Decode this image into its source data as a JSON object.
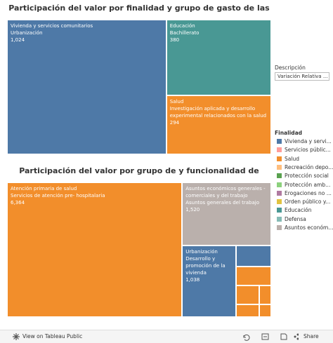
{
  "chart_data": [
    {
      "type": "treemap",
      "title": "Participación del valor por finalidad y grupo de gasto de las proformas presupuestales",
      "categories": [
        "Vivienda y servicios comunitarios",
        "Educación",
        "Salud"
      ],
      "subcategories": [
        "Urbanización",
        "Bachillerato",
        "Investigación aplicada y desarrollo experimental relacionados con la salud"
      ],
      "values": [
        1024,
        380,
        294
      ],
      "value_labels": [
        "1,024",
        "380",
        "294"
      ],
      "colors": [
        "#4e79a7",
        "#499894",
        "#f28e2b"
      ]
    },
    {
      "type": "treemap",
      "title": "Participación del valor por grupo de y funcionalidad de Gasto de las Proformas presupuestales",
      "categories": [
        "Atención primaria de salud",
        "Asuntos económicos generales - comerciales y del trabajo",
        "Urbanización",
        null,
        null,
        null,
        null,
        null,
        null
      ],
      "subcategories": [
        "Servicios de atención pre- hospitalaria",
        "Asuntos generales del trabajo",
        "Desarrollo y promoción de la vivienda",
        null,
        null,
        null,
        null,
        null,
        null
      ],
      "values": [
        6364,
        1520,
        1038,
        200,
        180,
        120,
        80,
        60,
        40
      ],
      "value_labels": [
        "6,364",
        "1,520",
        "1,038",
        null,
        null,
        null,
        null,
        null,
        null
      ],
      "colors": [
        "#f28e2b",
        "#bab0ac",
        "#4e79a7",
        "#4e79a7",
        "#f28e2b",
        "#f28e2b",
        "#f28e2b",
        "#f28e2b",
        "#f28e2b"
      ]
    }
  ],
  "filter": {
    "label": "Descripción",
    "value": "Variación Relativa ..."
  },
  "legend": {
    "title": "Finalidad",
    "items": [
      {
        "label": "Vivienda y servi...",
        "color": "#4e79a7"
      },
      {
        "label": "Servicios públic...",
        "color": "#ff9d9a"
      },
      {
        "label": "Salud",
        "color": "#f28e2b"
      },
      {
        "label": "Recreación depo...",
        "color": "#ffbe7d"
      },
      {
        "label": "Protección social",
        "color": "#59a14f"
      },
      {
        "label": "Protección amb...",
        "color": "#8cd17d"
      },
      {
        "label": "Erogaciones no ...",
        "color": "#b07aa1"
      },
      {
        "label": "Orden público y...",
        "color": "#e1c340"
      },
      {
        "label": "Educación",
        "color": "#499894"
      },
      {
        "label": "Defensa",
        "color": "#86bcb6"
      },
      {
        "label": "Asuntos económ...",
        "color": "#bab0ac"
      }
    ]
  },
  "footer": {
    "link": "View on Tableau Public",
    "share": "Share"
  }
}
